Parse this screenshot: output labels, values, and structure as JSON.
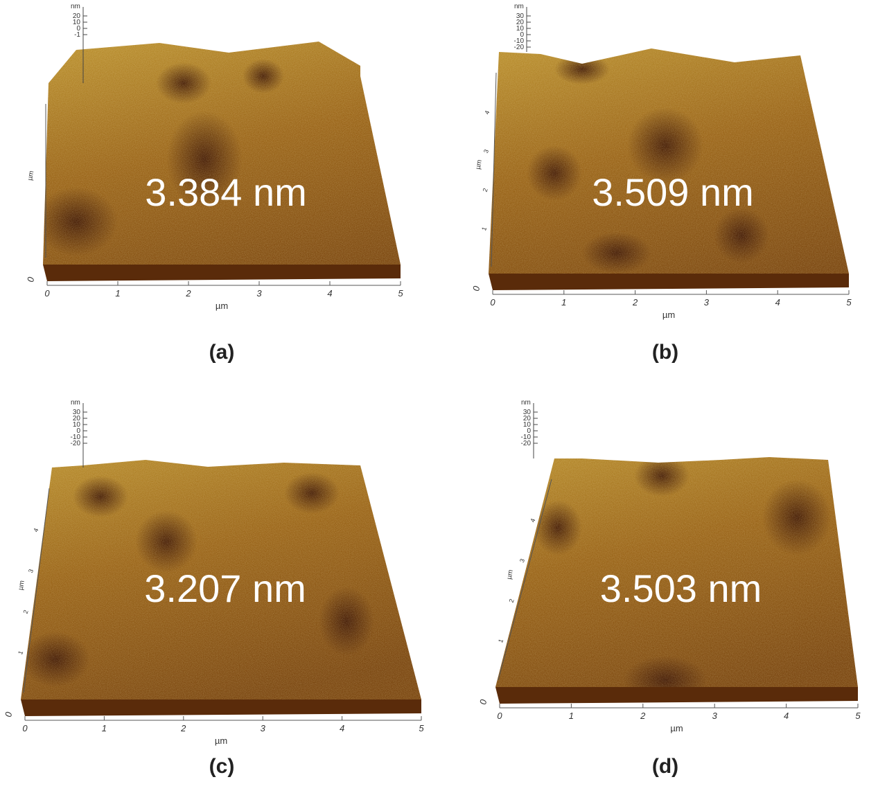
{
  "colors": {
    "surface_light": "#c9a43a",
    "surface_mid": "#9a6418",
    "surface_dark": "#3e1604",
    "base": "#5a2b0a"
  },
  "panels": [
    {
      "caption": "(a)",
      "roughness": "3.384 nm",
      "z_unit": "nm",
      "z_ticks": [
        "20",
        "10",
        "0",
        "-1"
      ],
      "y_unit": "µm",
      "y_ticks": [
        "",
        "",
        "",
        "",
        ""
      ],
      "x_unit": "µm",
      "x_ticks": [
        "0",
        "1",
        "2",
        "3",
        "4",
        "5"
      ],
      "origin_label": "0"
    },
    {
      "caption": "(b)",
      "roughness": "3.509 nm",
      "z_unit": "nm",
      "z_ticks": [
        "30",
        "20",
        "10",
        "0",
        "-10",
        "-20"
      ],
      "y_unit": "µm",
      "y_ticks": [
        "1",
        "2",
        "3",
        "4",
        ""
      ],
      "x_unit": "µm",
      "x_ticks": [
        "0",
        "1",
        "2",
        "3",
        "4",
        "5"
      ],
      "origin_label": "0"
    },
    {
      "caption": "(c)",
      "roughness": "3.207 nm",
      "z_unit": "nm",
      "z_ticks": [
        "30",
        "20",
        "10",
        "0",
        "-10",
        "-20"
      ],
      "y_unit": "µm",
      "y_ticks": [
        "1",
        "2",
        "3",
        "4",
        ""
      ],
      "x_unit": "µm",
      "x_ticks": [
        "0",
        "1",
        "2",
        "3",
        "4",
        "5"
      ],
      "origin_label": "0"
    },
    {
      "caption": "(d)",
      "roughness": "3.503 nm",
      "z_unit": "nm",
      "z_ticks": [
        "30",
        "20",
        "10",
        "0",
        "-10",
        "-20"
      ],
      "y_unit": "µm",
      "y_ticks": [
        "1",
        "2",
        "3",
        "4",
        ""
      ],
      "x_unit": "µm",
      "x_ticks": [
        "0",
        "1",
        "2",
        "3",
        "4",
        "5"
      ],
      "origin_label": "0"
    }
  ]
}
